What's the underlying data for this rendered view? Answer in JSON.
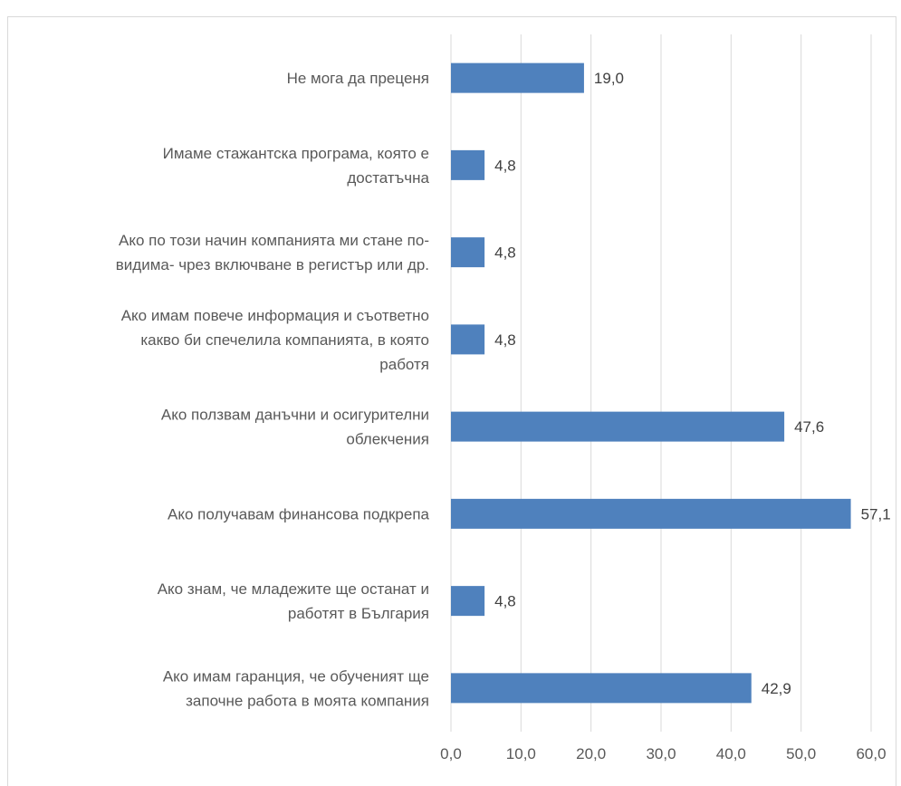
{
  "chart_data": {
    "type": "bar",
    "orientation": "horizontal",
    "categories": [
      [
        "Не мога да преценя"
      ],
      [
        "Имаме стажантска програма, която е",
        "достатъчна"
      ],
      [
        "Ако по този начин компанията ми стане по-",
        "видима- чрез включване в регистър или др."
      ],
      [
        "Ако имам повече информация и съответно",
        "какво би спечелила компанията, в която",
        "работя"
      ],
      [
        "Ако ползвам данъчни и осигурителни",
        "облекчения"
      ],
      [
        "Ако получавам финансова подкрепа"
      ],
      [
        "Ако знам, че младежите ще останат и",
        "работят в България"
      ],
      [
        "Ако имам гаранция, че обученият ще",
        "започне работа в моята компания"
      ]
    ],
    "values": [
      19.0,
      4.8,
      4.8,
      4.8,
      47.6,
      57.1,
      4.8,
      42.9
    ],
    "value_labels": [
      "19,0",
      "4,8",
      "4,8",
      "4,8",
      "47,6",
      "57,1",
      "4,8",
      "42,9"
    ],
    "xlim": [
      0,
      60
    ],
    "x_ticks": [
      0,
      10,
      20,
      30,
      40,
      50,
      60
    ],
    "x_tick_labels": [
      "0,0",
      "10,0",
      "20,0",
      "30,0",
      "40,0",
      "50,0",
      "60,0"
    ],
    "grid": "vertical",
    "legend": "none",
    "bar_color": "#4f81bd",
    "grid_color": "#d9d9d9"
  }
}
